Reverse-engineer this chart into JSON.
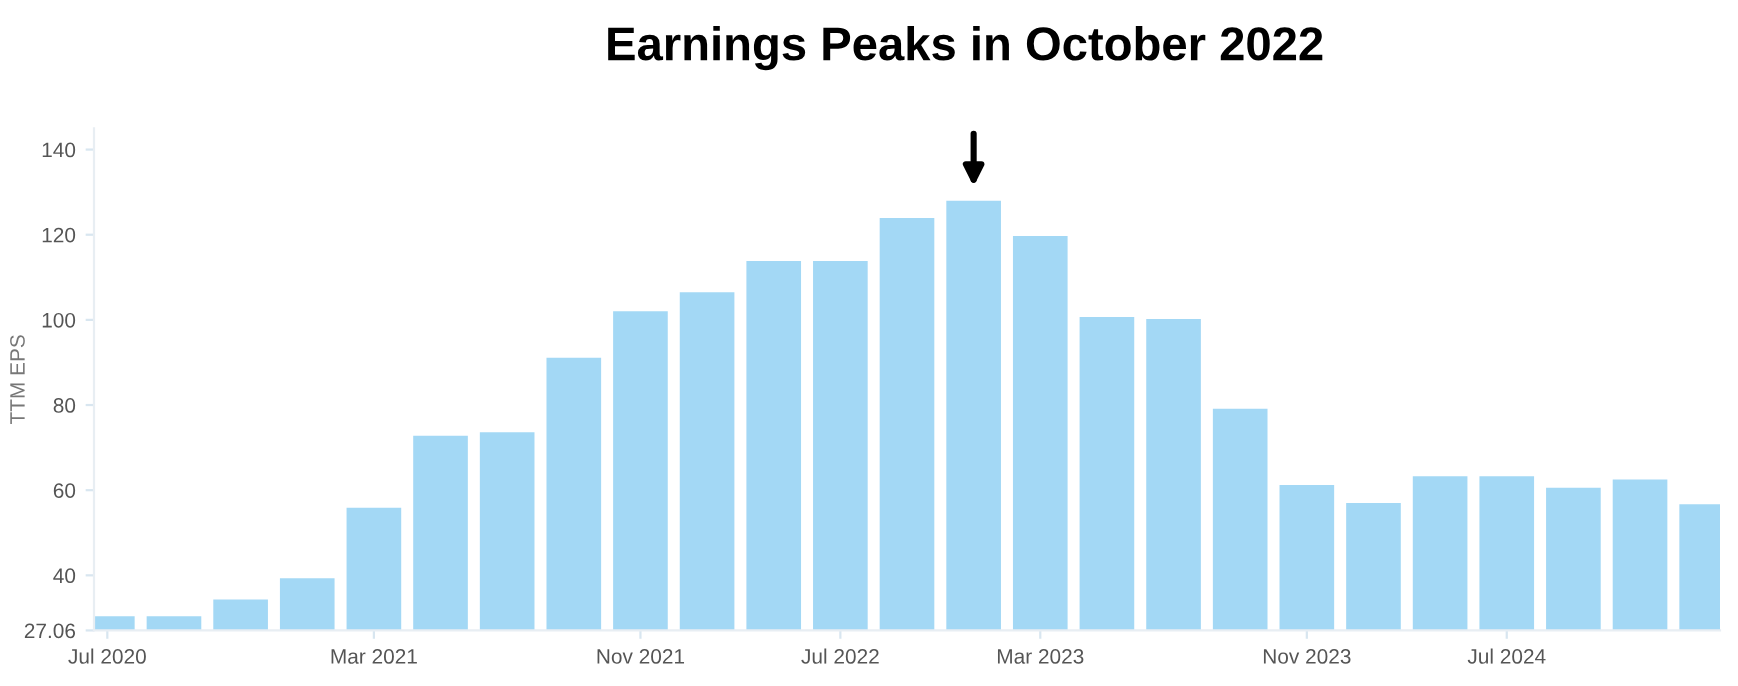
{
  "chart_data": {
    "type": "bar",
    "title": "Earnings Peaks in October 2022",
    "ylabel": "TTM EPS",
    "categories": [
      "Jul 2020",
      null,
      null,
      null,
      "Mar 2021",
      null,
      null,
      null,
      "Nov 2021",
      null,
      null,
      "Jul 2022",
      null,
      null,
      "Mar 2023",
      null,
      null,
      null,
      "Nov 2023",
      null,
      null,
      "Jul 2024",
      null,
      null,
      null
    ],
    "values": [
      30.4,
      30.4,
      34.3,
      39.3,
      55.9,
      72.8,
      73.6,
      91.1,
      102.0,
      106.5,
      113.8,
      113.8,
      123.9,
      128.0,
      119.7,
      100.7,
      100.2,
      79.1,
      61.2,
      57.0,
      63.3,
      63.3,
      60.6,
      62.5,
      56.7
    ],
    "color": "#a3d8f5",
    "ylim": [
      27.06,
      145
    ],
    "yticks": [
      27.06,
      40,
      60,
      80,
      100,
      120,
      140
    ],
    "grid": false,
    "legend": false
  }
}
